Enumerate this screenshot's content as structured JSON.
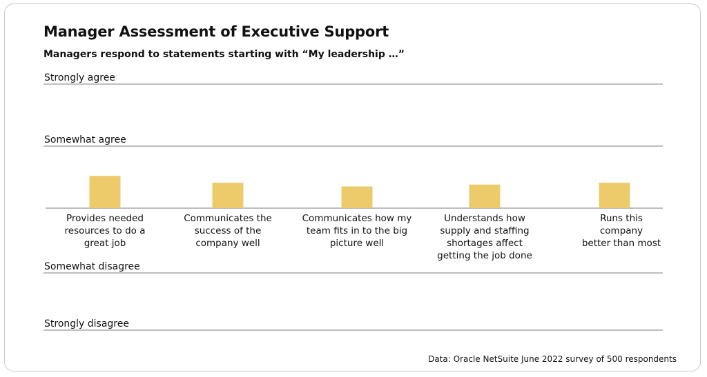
{
  "colors": {
    "bar": "#EDCB6B",
    "line": "#7d7d7d",
    "text": "#111111"
  },
  "chart_data": {
    "type": "bar",
    "title": "Manager Assessment of Executive Support",
    "subtitle": "Managers respond to statements starting with “My leadership …”",
    "scale_labels": [
      "Strongly agree",
      "Somewhat agree",
      "Somewhat disagree",
      "Strongly disagree"
    ],
    "categories": [
      "Provides needed resources to do a great job",
      "Communicates the success of the company well",
      "Communicates how my team fits in to the big picture well",
      "Understands how supply and staffing shortages affect getting the job done",
      "Runs this company better than most"
    ],
    "category_lines": [
      [
        "Provides needed",
        "resources to do a",
        "great job"
      ],
      [
        "Communicates the",
        "success of the",
        "company well"
      ],
      [
        "Communicates how my",
        "team fits in to the big",
        "picture well"
      ],
      [
        "Understands how",
        "supply and staffing",
        "shortages affect",
        "getting the job done"
      ],
      [
        "Runs this",
        "company",
        "better than most"
      ]
    ],
    "values": [
      0.52,
      0.41,
      0.35,
      0.38,
      0.41
    ],
    "ylim": [
      0,
      2
    ],
    "source": "Data: Oracle NetSuite June 2022 survey of 500 respondents"
  }
}
